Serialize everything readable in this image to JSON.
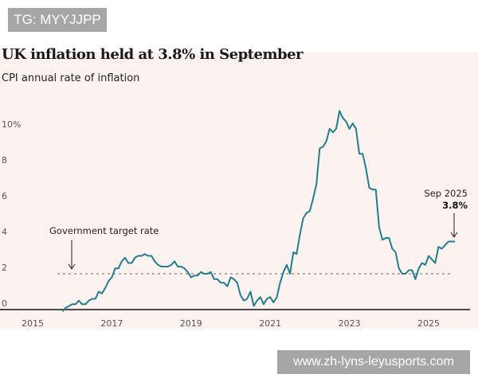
{
  "overlay_tag": "TG: MYYJJPP",
  "overlay_site": "www.zh-lyns-leyusports.com",
  "chart_data": {
    "type": "line",
    "title": "UK inflation held at 3.8% in September",
    "subtitle": "CPI annual rate of inflation",
    "y_ticks": [
      "0",
      "2",
      "4",
      "6",
      "8",
      "10%"
    ],
    "y_tick_values": [
      0,
      2,
      4,
      6,
      8,
      10
    ],
    "x_ticks": [
      "2015",
      "2017",
      "2019",
      "2021",
      "2023",
      "2025"
    ],
    "ylim": [
      0,
      11
    ],
    "xlim": [
      "2015-01",
      "2025-12"
    ],
    "grid": false,
    "line_color": "#1f7f8c",
    "target_rate": 2,
    "target_label": "Government target rate",
    "end_annotation": {
      "label": "Sep 2025",
      "value_label": "3.8%"
    },
    "start": "2015-10",
    "values": [
      -0.1,
      0.1,
      0.2,
      0.3,
      0.3,
      0.5,
      0.3,
      0.3,
      0.5,
      0.6,
      0.6,
      1.0,
      0.9,
      1.2,
      1.6,
      1.8,
      2.3,
      2.3,
      2.7,
      2.9,
      2.6,
      2.6,
      2.9,
      3.0,
      3.0,
      3.1,
      3.0,
      3.0,
      2.7,
      2.5,
      2.4,
      2.4,
      2.4,
      2.5,
      2.7,
      2.4,
      2.4,
      2.3,
      2.1,
      1.8,
      1.9,
      1.9,
      2.1,
      2.0,
      2.0,
      2.1,
      1.7,
      1.7,
      1.5,
      1.5,
      1.3,
      1.8,
      1.7,
      1.5,
      0.8,
      0.5,
      0.6,
      1.0,
      0.2,
      0.5,
      0.7,
      0.3,
      0.6,
      0.7,
      0.4,
      0.7,
      1.5,
      2.1,
      2.5,
      2.0,
      3.2,
      3.1,
      4.2,
      5.1,
      5.4,
      5.5,
      6.2,
      7.0,
      9.0,
      9.1,
      9.4,
      10.1,
      9.9,
      10.1,
      11.1,
      10.7,
      10.5,
      10.1,
      10.4,
      10.1,
      8.7,
      8.7,
      7.9,
      6.8,
      6.7,
      6.7,
      4.6,
      3.9,
      4.0,
      4.0,
      3.4,
      3.2,
      2.3,
      2.0,
      2.0,
      2.2,
      2.2,
      1.7,
      2.3,
      2.6,
      2.5,
      3.0,
      2.8,
      2.6,
      3.5,
      3.4,
      3.6,
      3.8,
      3.8,
      3.8
    ]
  }
}
